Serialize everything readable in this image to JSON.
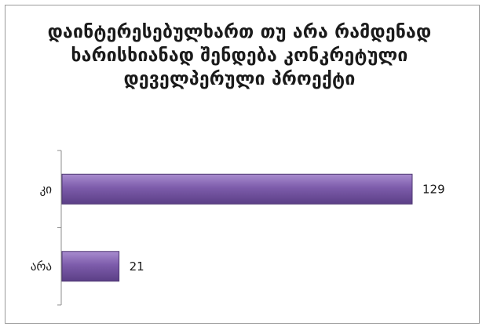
{
  "chart_data": {
    "type": "bar",
    "orientation": "horizontal",
    "title": "დაინტერესებულხართ თუ არა რამდენად ხარისხიანად შენდება კონკრეტული დეველპერული პროექტი",
    "categories": [
      "კი",
      "არა"
    ],
    "values": [
      129,
      21
    ],
    "xlim": [
      0,
      160
    ],
    "grid": false,
    "legend": "none",
    "bar_color": "#7a5aa6",
    "bar_stroke": "#4e3772"
  }
}
